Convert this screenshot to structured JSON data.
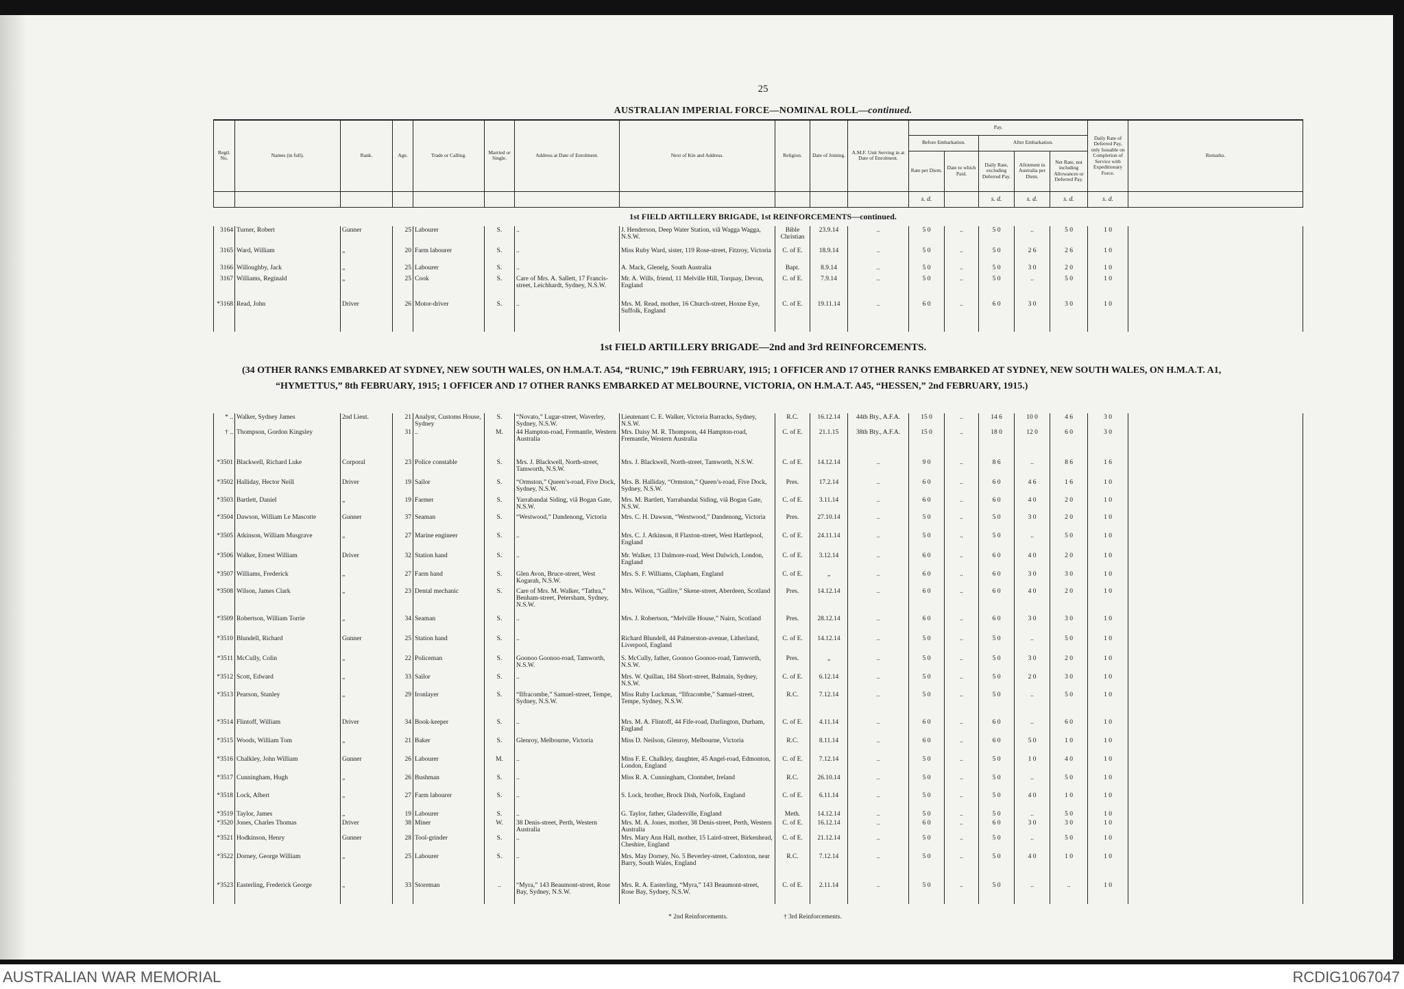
{
  "page_number": "25",
  "title": "AUSTRALIAN IMPERIAL FORCE—NOMINAL ROLL—",
  "title_suffix": "continued.",
  "table": {
    "columns": [
      "Regtl. No.",
      "Names (in full).",
      "Rank.",
      "Age.",
      "Trade or Calling.",
      "Married or Single.",
      "Address at Date of Enrolment.",
      "Next of Kin and Address.",
      "Religion.",
      "Date of Joining.",
      "A.M.F. Unit Serving in at Date of Enrolment.",
      "Rate per Diem.",
      "Date to which Paid.",
      "Daily Rate, excluding Deferred Pay.",
      "Allotment in Australia per Diem.",
      "Net Rate, not including Allowances or Deferred Pay.",
      "Daily Rate of Deferred Pay, only Issuable on Completion of Service with Expeditionary Force.",
      "Remarks."
    ],
    "pay_group": "Pay.",
    "before_embarkation": "Before Embarkation.",
    "after_embarkation": "After Embarkation.",
    "unit": "s. d."
  },
  "sections": [
    {
      "heading": "1st FIELD ARTILLERY BRIGADE, 1st REINFORCEMENTS—continued.",
      "rows": [
        [
          "3164",
          "Turner, Robert",
          "Gunner",
          "25",
          "Labourer",
          "S.",
          "..",
          "J. Henderson, Deep Water Station, viâ Wagga Wagga, N.S.W.",
          "Bible Christian",
          "23.9.14",
          "..",
          "5 0",
          "..",
          "5 0",
          "..",
          "5 0",
          "1 0"
        ],
        [
          "3165",
          "Ward, William",
          "„",
          "20",
          "Farm labourer",
          "S.",
          "..",
          "Miss Ruby Ward, sister, 119 Rose-street, Fitzroy, Victoria",
          "C. of E.",
          "18.9.14",
          "..",
          "5 0",
          "..",
          "5 0",
          "2 6",
          "2 6",
          "1 0"
        ],
        [
          "3166",
          "Willoughby, Jack",
          "„",
          "25",
          "Labourer",
          "S.",
          "..",
          "A. Mack, Glenelg, South Australia",
          "Bapt.",
          "8.9.14",
          "..",
          "5 0",
          "..",
          "5 0",
          "3 0",
          "2 0",
          "1 0"
        ],
        [
          "3167",
          "Williams, Reginald",
          "„",
          "25",
          "Cook",
          "S.",
          "Care of Mrs. A. Sallett, 17 Francis-street, Leichhardt, Sydney, N.S.W.",
          "Mr. A. Wills, friend, 11 Melville Hill, Torquay, Devon, England",
          "C. of E.",
          "7.9.14",
          "..",
          "5 0",
          "..",
          "5 0",
          "..",
          "5 0",
          "1 0"
        ],
        [
          "*3168",
          "Read, John",
          "Driver",
          "26",
          "Motor-driver",
          "S.",
          "..",
          "Mrs. M. Read, mother, 16 Church-street, Hoxne Eye, Suffolk, England",
          "C. of E.",
          "19.11.14",
          "..",
          "6 0",
          "..",
          "6 0",
          "3 0",
          "3 0",
          "1 0"
        ]
      ]
    },
    {
      "heading": "1st FIELD ARTILLERY BRIGADE—2nd and 3rd REINFORCEMENTS.",
      "note": "(34 OTHER RANKS EMBARKED AT SYDNEY, NEW SOUTH WALES, ON H.M.A.T. A54, “RUNIC,” 19th FEBRUARY, 1915; 1 OFFICER AND 17 OTHER RANKS EMBARKED AT SYDNEY, NEW SOUTH WALES, ON H.M.A.T. A1, “HYMETTUS,” 8th FEBRUARY, 1915; 1 OFFICER AND 17 OTHER RANKS EMBARKED AT MELBOURNE, VICTORIA, ON H.M.A.T. A45, “HESSEN,” 2nd FEBRUARY, 1915.)",
      "rows": [
        [
          "* ..",
          "Walker, Sydney James",
          "2nd Lieut.",
          "21",
          "Analyst, Customs House, Sydney",
          "S.",
          "“Novato,” Lugar-street, Waverley, Sydney, N.S.W.",
          "Lieutenant C. E. Walker, Victoria Barracks, Sydney, N.S.W.",
          "R.C.",
          "16.12.14",
          "44th Bty., A.F.A.",
          "15 0",
          "..",
          "14 6",
          "10 0",
          "4 6",
          "3 0"
        ],
        [
          "† ..",
          "Thompson, Gordon Kingsley",
          null,
          "31",
          "..",
          "M.",
          "44 Hampton-road, Fremantle, Western Australia",
          "Mrs. Daisy M. R. Thompson, 44 Hampton-road, Fremantle, Western Australia",
          "C. of E.",
          "21.1.15",
          "38th Bty., A.F.A.",
          "15 0",
          "..",
          "18 0",
          "12 0",
          "6 0",
          "3 0"
        ],
        [
          "*3501",
          "Blackwell, Richard Luke",
          "Corporal",
          "23",
          "Police constable",
          "S.",
          "Mrs. J. Blackwell, North-street, Tamworth, N.S.W.",
          "Mrs. J. Blackwell, North-street, Tamworth, N.S.W.",
          "C. of E.",
          "14.12.14",
          "..",
          "9 0",
          "..",
          "8 6",
          "..",
          "8 6",
          "1 6"
        ],
        [
          "*3502",
          "Halliday, Hector Neill",
          "Driver",
          "19",
          "Sailor",
          "S.",
          "“Ormston,” Queen’s-road, Five Dock, Sydney, N.S.W.",
          "Mrs. B. Halliday, “Ormston,” Queen’s-road, Five Dock, Sydney, N.S.W.",
          "Pres.",
          "17.2.14",
          "..",
          "6 0",
          "..",
          "6 0",
          "4 6",
          "1 6",
          "1 0"
        ],
        [
          "*3503",
          "Bartlett, Daniel",
          "„",
          "19",
          "Farmer",
          "S.",
          "Yarrabandai Siding, viâ Bogan Gate, N.S.W.",
          "Mrs. M. Bartlett, Yarrabandai Siding, viâ Bogan Gate, N.S.W.",
          "C. of E.",
          "3.11.14",
          "..",
          "6 0",
          "..",
          "6 0",
          "4 0",
          "2 0",
          "1 0"
        ],
        [
          "*3504",
          "Dawson, William Le Mascotte",
          "Gunner",
          "37",
          "Seaman",
          "S.",
          "“Westwood,” Dandenong, Victoria",
          "Mrs. C. H. Dawson, “Westwood,” Dandenong, Victoria",
          "Pres.",
          "27.10.14",
          "..",
          "5 0",
          "..",
          "5 0",
          "3 0",
          "2 0",
          "1 0"
        ],
        [
          "*3505",
          "Atkinson, William Musgrave",
          "„",
          "27",
          "Marine engineer",
          "S.",
          "..",
          "Mrs. C. J. Atkinson, 8 Flaxton-street, West Hartlepool, England",
          "C. of E.",
          "24.11.14",
          "..",
          "5 0",
          "..",
          "5 0",
          "..",
          "5 0",
          "1 0"
        ],
        [
          "*3506",
          "Walker, Ernest William",
          "Driver",
          "32",
          "Station hand",
          "S.",
          "..",
          "Mr. Walker, 13 Dalmore-road, West Dulwich, London, England",
          "C. of E.",
          "3.12.14",
          "..",
          "6 0",
          "..",
          "6 0",
          "4 0",
          "2 0",
          "1 0"
        ],
        [
          "*3507",
          "Williams, Frederick",
          "„",
          "27",
          "Farm hand",
          "S.",
          "Glen Avon, Bruce-street, West Kogarah, N.S.W.",
          "Mrs. S. F. Williams, Clapham, England",
          "C. of E.",
          "„",
          "..",
          "6 0",
          "..",
          "6 0",
          "3 0",
          "3 0",
          "1 0"
        ],
        [
          "*3508",
          "Wilson, James Clark",
          "„",
          "23",
          "Dental mechanic",
          "S.",
          "Care of Mrs. M. Walker, “Tathra,” Benham-street, Petersham, Sydney, N.S.W.",
          "Mrs. Wilson, “Gallire,” Skene-street, Aberdeen, Scotland",
          "Pres.",
          "14.12.14",
          "..",
          "6 0",
          "..",
          "6 0",
          "4 0",
          "2 0",
          "1 0"
        ],
        [
          "*3509",
          "Robertson, William Torrie",
          "„",
          "34",
          "Seaman",
          "S.",
          "..",
          "Mrs. J. Robertson, “Melville House,” Nairn, Scotland",
          "Pres.",
          "28.12.14",
          "..",
          "6 0",
          "..",
          "6 0",
          "3 0",
          "3 0",
          "1 0"
        ],
        [
          "*3510",
          "Blundell, Richard",
          "Gunner",
          "25",
          "Station hand",
          "S.",
          "..",
          "Richard Blundell, 44 Palmerston-avenue, Litherland, Liverpool, England",
          "C. of E.",
          "14.12.14",
          "..",
          "5 0",
          "..",
          "5 0",
          "..",
          "5 0",
          "1 0"
        ],
        [
          "*3511",
          "McCully, Colin",
          "„",
          "22",
          "Policeman",
          "S.",
          "Goonoo Goonoo-road, Tamworth, N.S.W.",
          "S. McCully, father, Goonoo Goonoo-road, Tamworth, N.S.W.",
          "Pres.",
          "„",
          "..",
          "5 0",
          "..",
          "5 0",
          "3 0",
          "2 0",
          "1 0"
        ],
        [
          "*3512",
          "Scott, Edward",
          "„",
          "33",
          "Sailor",
          "S.",
          "..",
          "Mrs. W. Quillan, 184 Short-street, Balmain, Sydney, N.S.W.",
          "C. of E.",
          "6.12.14",
          "..",
          "5 0",
          "..",
          "5 0",
          "2 0",
          "3 0",
          "1 0"
        ],
        [
          "*3513",
          "Pearson, Stanley",
          "„",
          "29",
          "Ironlayer",
          "S.",
          "“Ilfracombe,” Samuel-street, Tempe, Sydney, N.S.W.",
          "Miss Ruby Luckman, “Ilfracombe,” Samuel-street, Tempe, Sydney, N.S.W.",
          "R.C.",
          "7.12.14",
          "..",
          "5 0",
          "..",
          "5 0",
          "..",
          "5 0",
          "1 0"
        ],
        [
          "*3514",
          "Flintoff, William",
          "Driver",
          "34",
          "Book-keeper",
          "S.",
          "..",
          "Mrs. M. A. Flintoff, 44 Fife-road, Darlington, Durham, England",
          "C. of E.",
          "4.11.14",
          "..",
          "6 0",
          "..",
          "6 0",
          "..",
          "6 0",
          "1 0"
        ],
        [
          "*3515",
          "Woods, William Tom",
          "„",
          "21",
          "Baker",
          "S.",
          "Glenroy, Melbourne, Victoria",
          "Miss D. Neilson, Glenroy, Melbourne, Victoria",
          "R.C.",
          "8.11.14",
          "..",
          "6 0",
          "..",
          "6 0",
          "5 0",
          "1 0",
          "1 0"
        ],
        [
          "*3516",
          "Chalkley, John William",
          "Gunner",
          "26",
          "Labourer",
          "M.",
          "..",
          "Miss F. E. Chalkley, daughter, 45 Angel-road, Edmonton, London, England",
          "C. of E.",
          "7.12.14",
          "..",
          "5 0",
          "..",
          "5 0",
          "1 0",
          "4 0",
          "1 0"
        ],
        [
          "*3517",
          "Cunningham, Hugh",
          "„",
          "26",
          "Bushman",
          "S.",
          "..",
          "Miss R. A. Cunningham, Clontubet, Ireland",
          "R.C.",
          "26.10.14",
          "..",
          "5 0",
          "..",
          "5 0",
          "..",
          "5 0",
          "1 0"
        ],
        [
          "*3518",
          "Lock, Albert",
          "„",
          "27",
          "Farm labourer",
          "S.",
          "..",
          "S. Lock, brother, Brock Dish, Norfolk, England",
          "C. of E.",
          "6.11.14",
          "..",
          "5 0",
          "..",
          "5 0",
          "4 0",
          "1 0",
          "1 0"
        ],
        [
          "*3519",
          "Taylor, James",
          "„",
          "19",
          "Labourer",
          "S.",
          "..",
          "G. Taylor, father, Gladesville, England",
          "Meth.",
          "14.12.14",
          "..",
          "5 0",
          "..",
          "5 0",
          "..",
          "5 0",
          "1 0"
        ],
        [
          "*3520",
          "Jones, Charles Thomas",
          "Driver",
          "38",
          "Miner",
          "W.",
          "38 Denis-street, Perth, Western Australia",
          "Mrs. M. A. Jones, mother, 38 Denis-street, Perth, Western Australia",
          "C. of E.",
          "16.12.14",
          "..",
          "6 0",
          "..",
          "6 0",
          "3 0",
          "3 0",
          "1 0"
        ],
        [
          "*3521",
          "Hodkinson, Henry",
          "Gunner",
          "28",
          "Tool-grinder",
          "S.",
          "..",
          "Mrs. Mary Ann Hall, mother, 15 Laird-street, Birkenhead, Cheshire, England",
          "C. of E.",
          "21.12.14",
          "..",
          "5 0",
          "..",
          "5 0",
          "..",
          "5 0",
          "1 0"
        ],
        [
          "*3522",
          "Dorney, George William",
          "„",
          "25",
          "Labourer",
          "S.",
          "..",
          "Mrs. May Dorney, No. 5 Beverley-street, Cadoxton, near Barry, South Wales, England",
          "R.C.",
          "7.12.14",
          "..",
          "5 0",
          "..",
          "5 0",
          "4 0",
          "1 0",
          "1 0"
        ],
        [
          "*3523",
          "Easterling, Frederick George",
          "„",
          "33",
          "Storeman",
          "..",
          "“Myra,” 143 Beaumont-street, Rose Bay, Sydney, N.S.W.",
          "Mrs. R. A. Easterling, “Myra,” 143 Beaumont-street, Rose Bay, Sydney, N.S.W.",
          "C. of E.",
          "2.11.14",
          "..",
          "5 0",
          "..",
          "5 0",
          "..",
          "..",
          "1 0"
        ]
      ]
    }
  ],
  "footnotes": [
    "* 2nd Reinforcements.",
    "† 3rd Reinforcements."
  ],
  "footer": {
    "left": "AUSTRALIAN WAR MEMORIAL",
    "right": "RCDIG1067047"
  }
}
